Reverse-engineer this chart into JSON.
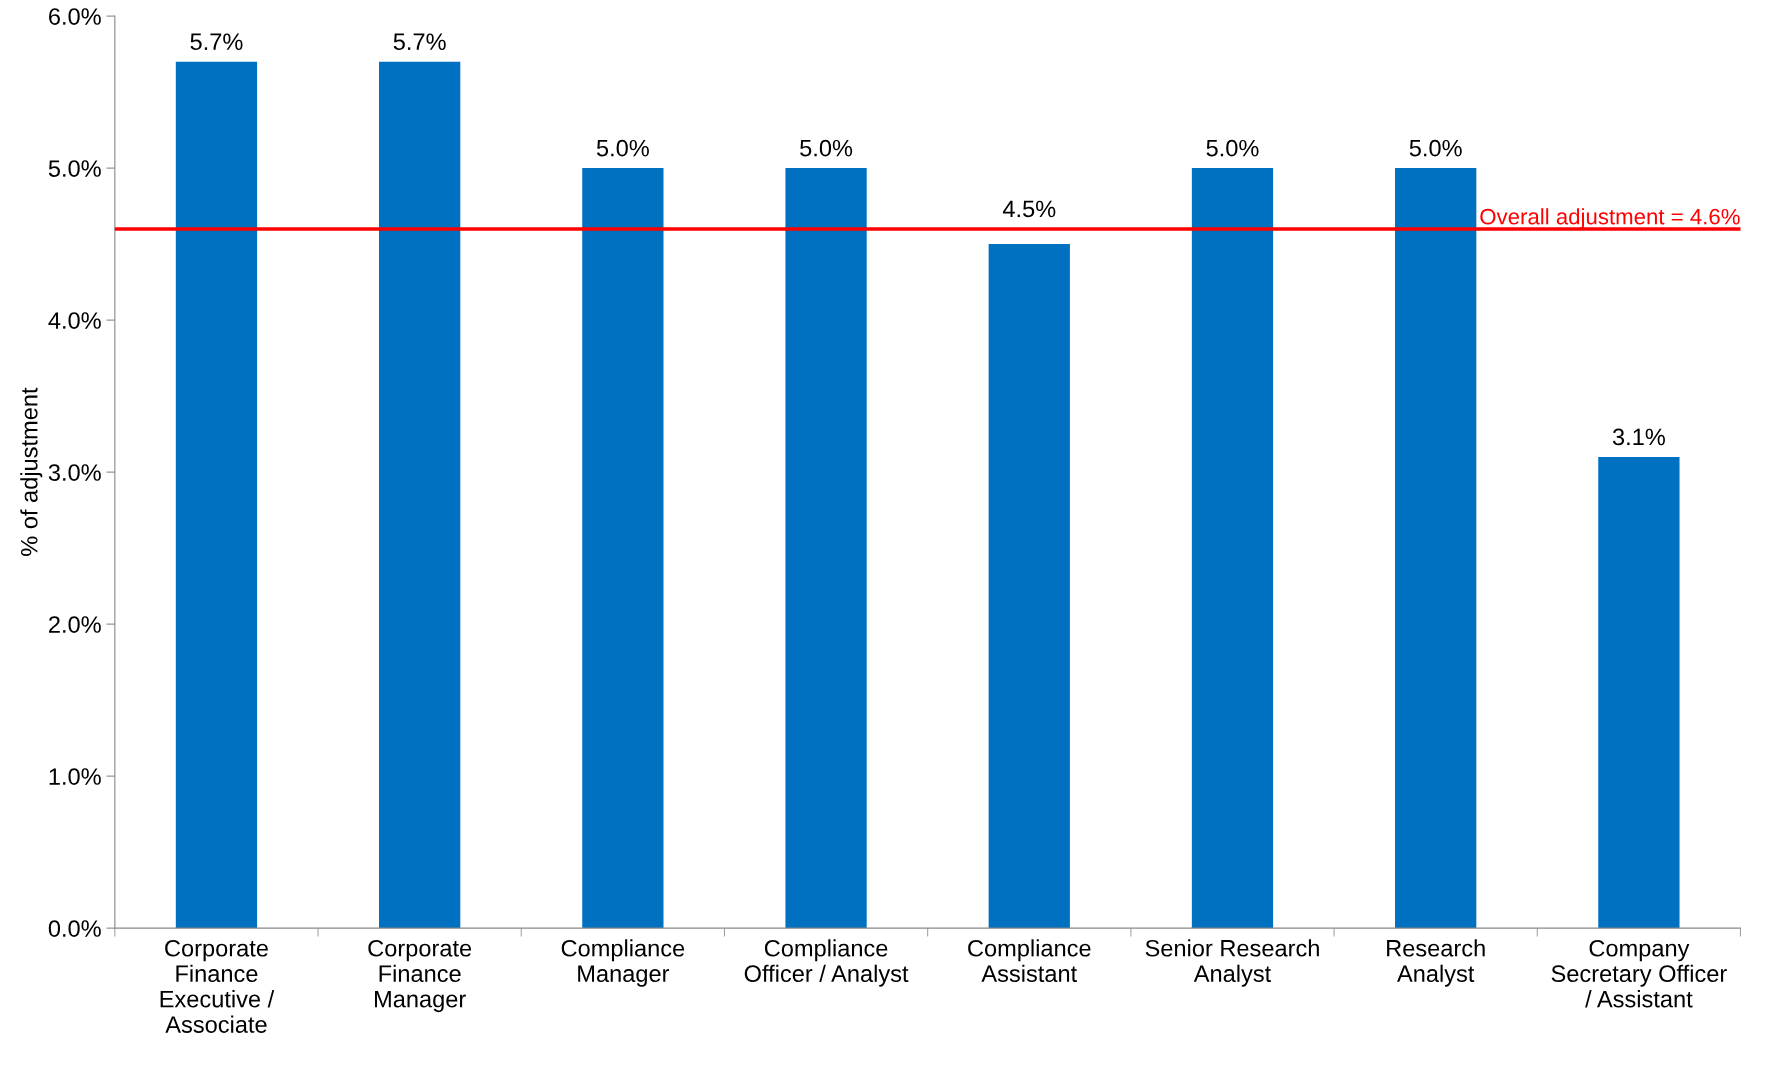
{
  "chart_data": {
    "type": "bar",
    "ylabel": "% of adjustment",
    "categories": [
      "Corporate\nFinance\nExecutive /\nAssociate",
      "Corporate\nFinance\nManager",
      "Compliance\nManager",
      "Compliance\nOfficer / Analyst",
      "Compliance\nAssistant",
      "Senior Research\nAnalyst",
      "Research\nAnalyst",
      "Company\nSecretary Officer\n/ Assistant"
    ],
    "values": [
      5.7,
      5.7,
      5.0,
      5.0,
      4.5,
      5.0,
      5.0,
      3.1
    ],
    "value_labels": [
      "5.7%",
      "5.7%",
      "5.0%",
      "5.0%",
      "4.5%",
      "5.0%",
      "5.0%",
      "3.1%"
    ],
    "color": "#0070c0",
    "ylim": [
      0,
      6
    ],
    "yticks": [
      {
        "value": 0,
        "label": "0.0%"
      },
      {
        "value": 1,
        "label": "1.0%"
      },
      {
        "value": 2,
        "label": "2.0%"
      },
      {
        "value": 3,
        "label": "3.0%"
      },
      {
        "value": 4,
        "label": "4.0%"
      },
      {
        "value": 5,
        "label": "5.0%"
      },
      {
        "value": 6,
        "label": "6.0%"
      }
    ],
    "ref_lines": [
      {
        "axis": "y",
        "value": 4.6,
        "label": "Overall adjustment = 4.6%",
        "color": "#ff0000"
      }
    ],
    "grid": false
  }
}
